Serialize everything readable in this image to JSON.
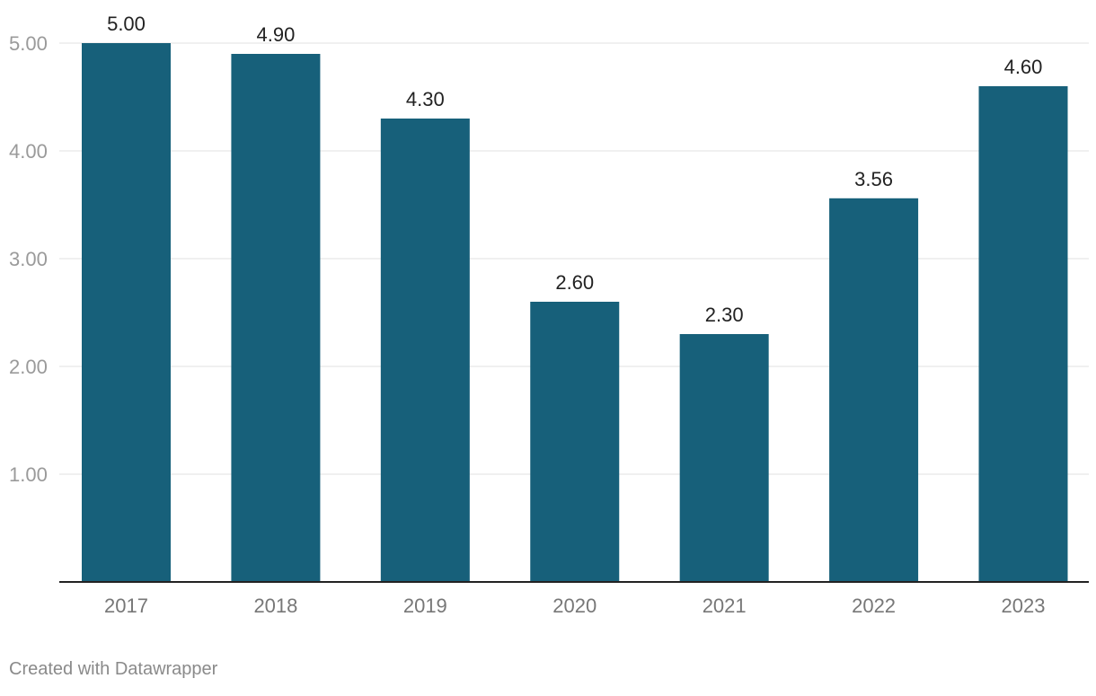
{
  "chart_data": {
    "type": "bar",
    "categories": [
      "2017",
      "2018",
      "2019",
      "2020",
      "2021",
      "2022",
      "2023"
    ],
    "values": [
      5.0,
      4.9,
      4.3,
      2.6,
      2.3,
      3.56,
      4.6
    ],
    "value_labels": [
      "5.00",
      "4.90",
      "4.30",
      "2.60",
      "2.30",
      "3.56",
      "4.60"
    ],
    "y_ticks": [
      1,
      2,
      3,
      4,
      5
    ],
    "y_tick_labels": [
      "1.00",
      "2.00",
      "3.00",
      "4.00",
      "5.00"
    ],
    "ylim": [
      0,
      5
    ],
    "grid": true,
    "bar_color": "#17607a",
    "grid_color": "#e2e2e2",
    "axis_color": "#222222",
    "tick_label_color": "#9a9a9a",
    "x_label_color": "#777777",
    "value_label_color": "#222222"
  },
  "footer": {
    "credit": "Created with Datawrapper"
  }
}
